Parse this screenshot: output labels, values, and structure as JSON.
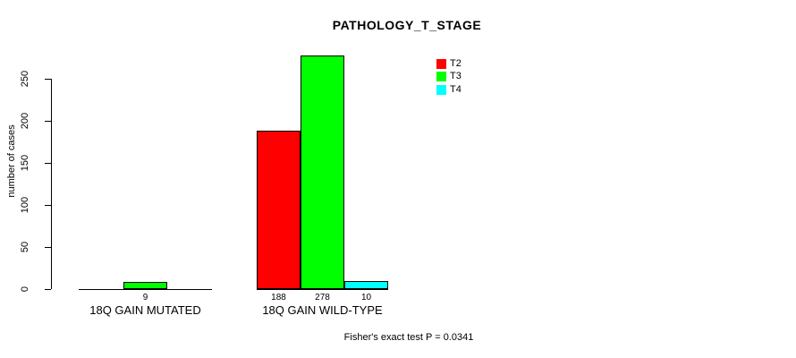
{
  "chart_data": {
    "type": "bar",
    "title": "PATHOLOGY_T_STAGE",
    "ylabel": "number of cases",
    "xlabel": "",
    "yticks": [
      0,
      50,
      100,
      150,
      200,
      250
    ],
    "ylim": [
      0,
      250
    ],
    "grid": false,
    "legend_position": "top-right",
    "categories": [
      "18Q GAIN MUTATED",
      "18Q GAIN WILD-TYPE"
    ],
    "series": [
      {
        "name": "T2",
        "color": "#FF0000",
        "values": [
          0,
          188
        ]
      },
      {
        "name": "T3",
        "color": "#00FF00",
        "values": [
          9,
          278
        ]
      },
      {
        "name": "T4",
        "color": "#00FFFF",
        "values": [
          0,
          10
        ]
      }
    ],
    "groups": [
      {
        "label": "18Q GAIN MUTATED",
        "values": [
          0,
          9,
          0
        ],
        "bar_labels": [
          "",
          "9",
          ""
        ]
      },
      {
        "label": "18Q GAIN WILD-TYPE",
        "values": [
          188,
          278,
          10
        ],
        "bar_labels": [
          "188",
          "278",
          "10"
        ]
      }
    ],
    "annotation": "Fisher's exact test P = 0.0341"
  }
}
